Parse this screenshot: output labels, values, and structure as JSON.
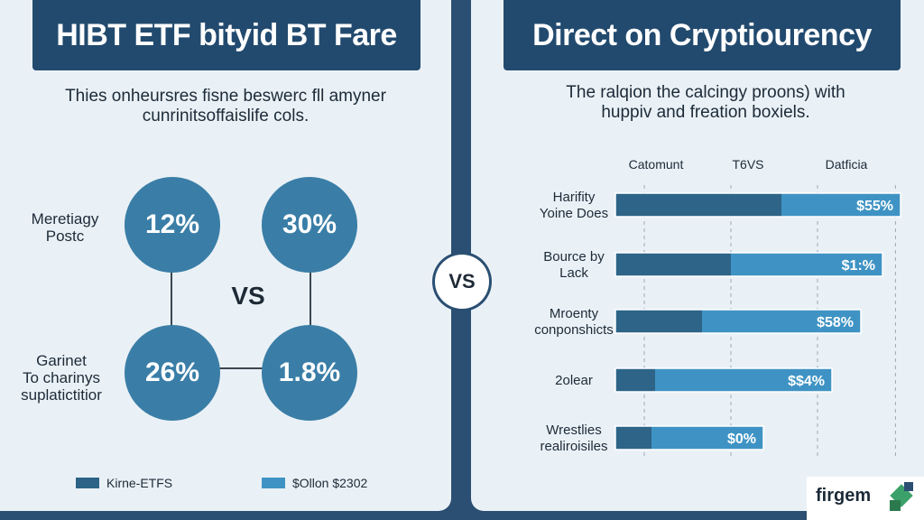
{
  "left": {
    "title": "HIBT ETF bityid BT Fare",
    "subtitle_line1": "Thies onheursres fisne beswerc fll amyner",
    "subtitle_line2": "cunrinitsoffaislife cols.",
    "row1_label_line1": "Meretiagy",
    "row1_label_line2": "Postc",
    "row2_label_line1": "Garinet",
    "row2_label_line2": "To charinys",
    "row2_label_line3": "suplatictitior",
    "circles": [
      "12%",
      "30%",
      "26%",
      "1.8%"
    ],
    "vs": "VS",
    "legend": [
      {
        "label": "Kirne-ETFS",
        "color": "#2c6387"
      },
      {
        "label": "$Ollon $2302",
        "color": "#3f93c4"
      }
    ]
  },
  "center_badge": "VS",
  "right": {
    "title": "Direct on Cryptiourency",
    "subtitle_line1": "The ralqion the calcingy proons) with",
    "subtitle_line2": "huppiv and freation boxiels."
  },
  "chart_data": {
    "type": "bar",
    "orientation": "horizontal",
    "stacked": true,
    "column_headers": [
      "Catomunt",
      "T6VS",
      "Datficia"
    ],
    "categories": [
      [
        "Harifity",
        "Yoine Does"
      ],
      [
        "Bource by",
        "Lack"
      ],
      [
        "Mroenty",
        "conponshicts"
      ],
      [
        "2olear"
      ],
      [
        "Wrestlies",
        "realiroisiles"
      ]
    ],
    "series": [
      {
        "values": [
          46,
          32,
          24,
          11,
          10
        ],
        "color": "#2d6488"
      },
      {
        "values": [
          33,
          42,
          44,
          49,
          31
        ],
        "color": "#3f93c4"
      }
    ],
    "data_labels": [
      "$55%",
      "$1:%",
      "$58%",
      "$$4%",
      "$0%"
    ],
    "xlim": [
      0,
      80
    ],
    "grid": true,
    "legend": "none"
  },
  "logo": {
    "text": "firgem"
  }
}
